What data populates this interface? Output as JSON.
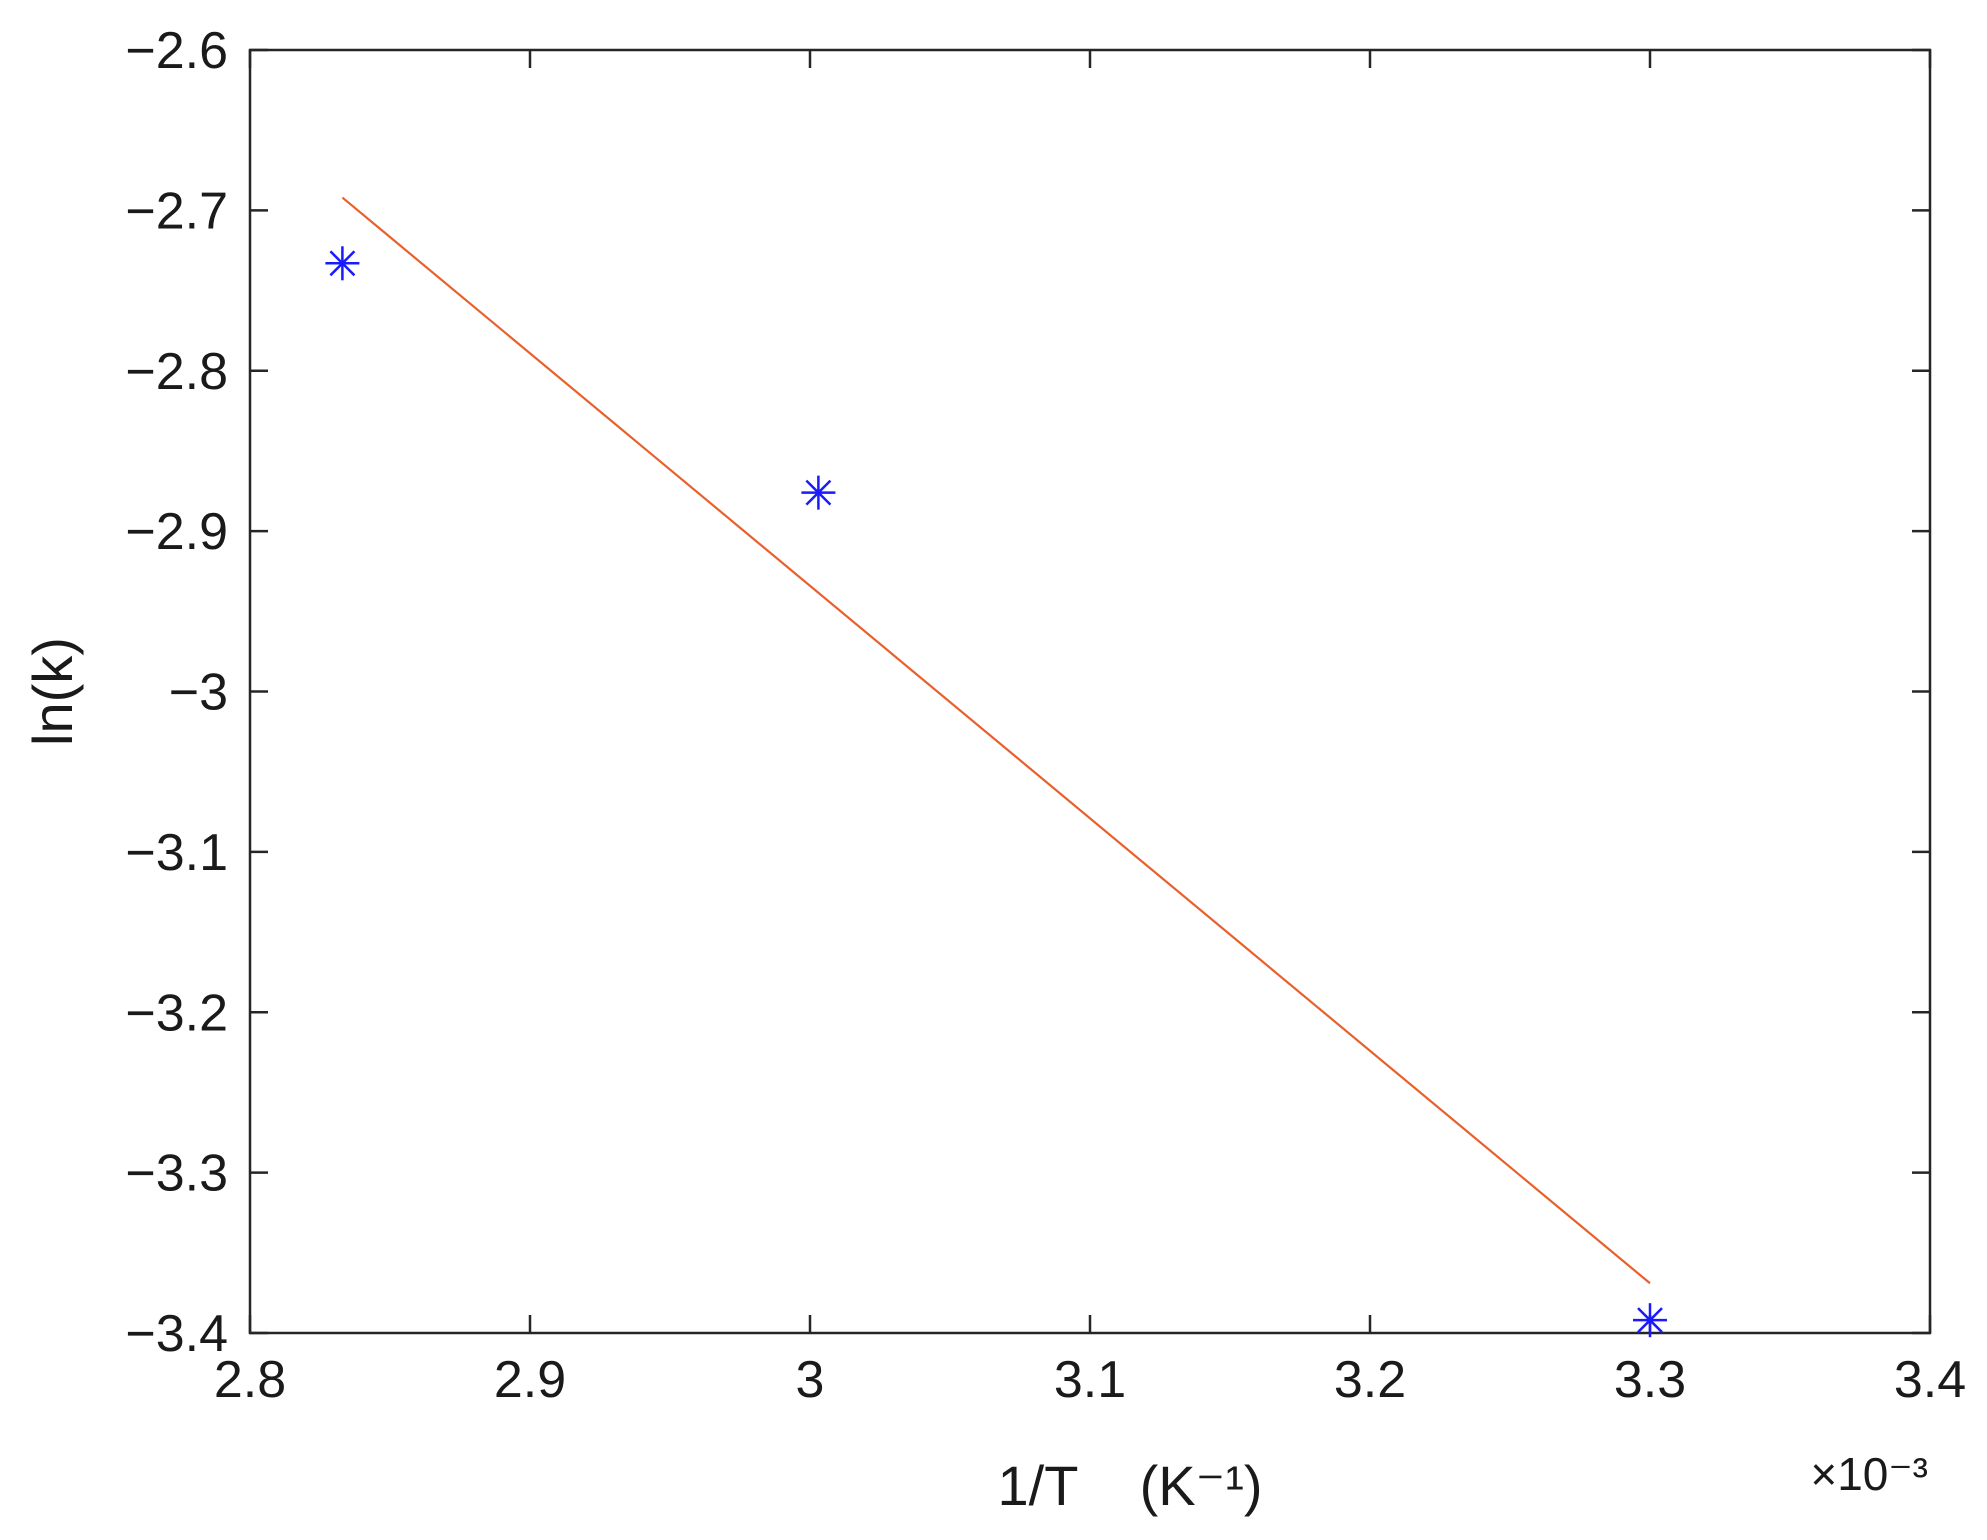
{
  "chart_data": {
    "type": "scatter",
    "title": "",
    "xlabel": "1/T    (K⁻¹)",
    "ylabel": "ln(k)",
    "x_exponent_label": "×10⁻³",
    "xlim": [
      2.8,
      3.4
    ],
    "ylim": [
      -3.4,
      -2.6
    ],
    "x_ticks": [
      2.8,
      2.9,
      3.0,
      3.1,
      3.2,
      3.3,
      3.4
    ],
    "x_tick_labels": [
      "2.8",
      "2.9",
      "3",
      "3.1",
      "3.2",
      "3.3",
      "3.4"
    ],
    "y_ticks": [
      -3.4,
      -3.3,
      -3.2,
      -3.1,
      -3.0,
      -2.9,
      -2.8,
      -2.7,
      -2.6
    ],
    "y_tick_labels": [
      "−3.4",
      "−3.3",
      "−3.2",
      "−3.1",
      "−3",
      "−2.9",
      "−2.8",
      "−2.7",
      "−2.6"
    ],
    "grid": false,
    "series": [
      {
        "type": "scatter",
        "marker": "asterisk",
        "color": "#1a1aff",
        "x": [
          2.833,
          3.003,
          3.3
        ],
        "y": [
          -2.733,
          -2.876,
          -3.392
        ]
      },
      {
        "type": "line",
        "color": "#e8602c",
        "x": [
          2.833,
          3.3
        ],
        "y": [
          -2.692,
          -3.369
        ]
      }
    ]
  }
}
